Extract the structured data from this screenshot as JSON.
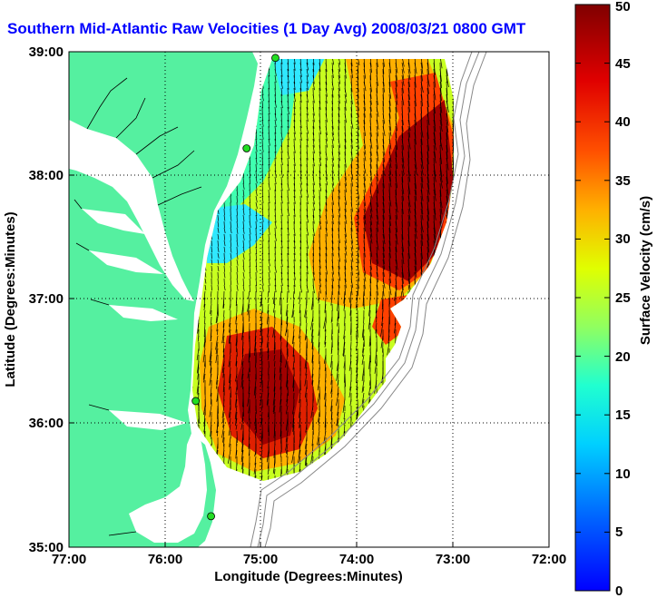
{
  "title": "Southern Mid-Atlantic Raw Velocities (1 Day Avg) 2008/03/21 0800 GMT",
  "x_axis": {
    "label": "Longitude (Degrees:Minutes)",
    "ticks": [
      "77:00",
      "76:00",
      "75:00",
      "74:00",
      "73:00",
      "72:00"
    ],
    "range": [
      -77,
      -72
    ]
  },
  "y_axis": {
    "label": "Latitude (Degrees:Minutes)",
    "ticks": [
      "35:00",
      "36:00",
      "37:00",
      "38:00",
      "39:00"
    ],
    "range": [
      35,
      39
    ]
  },
  "colorbar": {
    "label": "Surface Velocity (cm/s)",
    "ticks": [
      "0",
      "5",
      "10",
      "15",
      "20",
      "25",
      "30",
      "35",
      "40",
      "45",
      "50"
    ],
    "range": [
      0,
      50
    ],
    "colormap": "jet"
  },
  "colors": {
    "land": "#55f0a0",
    "ocean": "#ffffff",
    "title": "#0000ff",
    "stations": "#22dd22",
    "arrows": "#000000",
    "bathymetry": "#888888"
  },
  "stations": [
    {
      "lon": -74.85,
      "lat": 38.95
    },
    {
      "lon": -75.15,
      "lat": 38.22
    },
    {
      "lon": -75.68,
      "lat": 36.18
    },
    {
      "lon": -75.52,
      "lat": 35.25
    }
  ]
}
